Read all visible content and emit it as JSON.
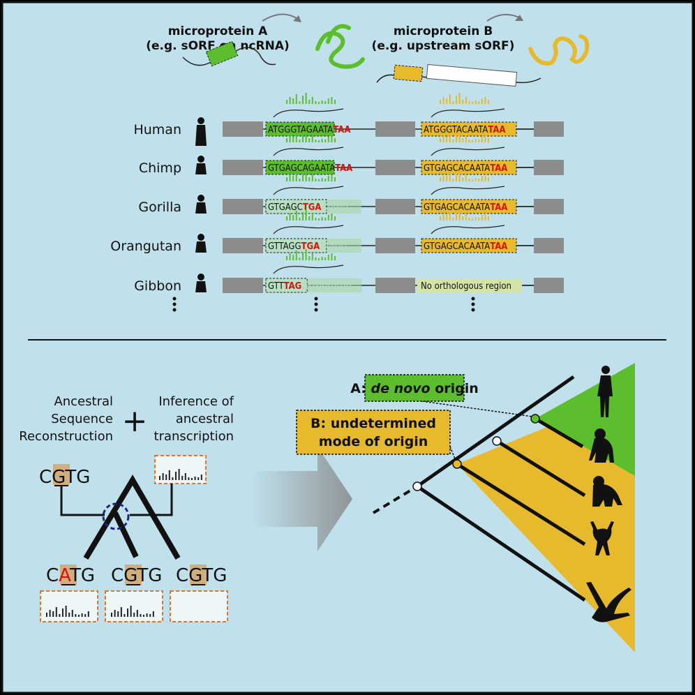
{
  "colors": {
    "background": "#c0e1eb",
    "green": "#5cbe2c",
    "yellow": "#e7b92c",
    "stop_codon": "#d0160e",
    "exon_gray": "#8c8c8c",
    "dashed_orange": "#d9782a",
    "node_circle_blue": "#1a237e"
  },
  "top": {
    "microprotein_a": {
      "title": "microprotein A",
      "subtitle": "(e.g. sORF on ncRNA)"
    },
    "microprotein_b": {
      "title": "microprotein B",
      "subtitle": "(e.g. upstream sORF)"
    }
  },
  "species": [
    {
      "name": "Human",
      "icon": "human-silhouette-icon",
      "a": {
        "seq": "ATGGGTAGAATA",
        "stop": "TAA",
        "tail": "",
        "conserved": true
      },
      "b": {
        "seq": "ATGGGTACAATA",
        "stop": "TAA",
        "tail": "",
        "present": true
      }
    },
    {
      "name": "Chimp",
      "icon": "chimp-silhouette-icon",
      "a": {
        "seq": "GTGAGCAGAATA",
        "stop": "TAA",
        "tail": "",
        "conserved": true
      },
      "b": {
        "seq": "GTGAGCACAATA",
        "stop": "TAA",
        "tail": "",
        "present": true
      }
    },
    {
      "name": "Gorilla",
      "icon": "gorilla-silhouette-icon",
      "a": {
        "seq": "GTGAGC",
        "stop": "TGA",
        "tail": "ATATAT",
        "conserved": false
      },
      "b": {
        "seq": "GTGAGCACAATA",
        "stop": "TAA",
        "tail": "",
        "present": true
      }
    },
    {
      "name": "Orangutan",
      "icon": "orangutan-silhouette-icon",
      "a": {
        "seq": "GTTAGG",
        "stop": "TGA",
        "tail": "ATATAT",
        "conserved": false
      },
      "b": {
        "seq": "GTGAGCACAATA",
        "stop": "TAA",
        "tail": "",
        "present": true
      }
    },
    {
      "name": "Gibbon",
      "icon": "gibbon-silhouette-icon",
      "a": {
        "seq": "GTT",
        "stop": "TAG",
        "tail": "GTGAATATAT",
        "conserved": false
      },
      "b": {
        "text": "No orthologous region",
        "present": false
      }
    }
  ],
  "bottom": {
    "method_left": [
      "Ancestral",
      "Sequence",
      "Reconstruction"
    ],
    "plus": "+",
    "method_right": [
      "Inference of",
      "ancestral",
      "transcription"
    ],
    "ancestor_seq": {
      "pre": "C",
      "site": "G",
      "post": "TG"
    },
    "leaf_seqs": [
      {
        "pre": "C",
        "site": "A",
        "post": "TG",
        "mutated": true,
        "transcribed": true
      },
      {
        "pre": "C",
        "site": "G",
        "post": "TG",
        "mutated": false,
        "transcribed": true
      },
      {
        "pre": "C",
        "site": "G",
        "post": "TG",
        "mutated": false,
        "transcribed": false
      }
    ],
    "label_a": {
      "prefix": "A: ",
      "italic": "de novo",
      "suffix": " origin"
    },
    "label_b": [
      "B: undetermined",
      "mode of origin"
    ]
  }
}
